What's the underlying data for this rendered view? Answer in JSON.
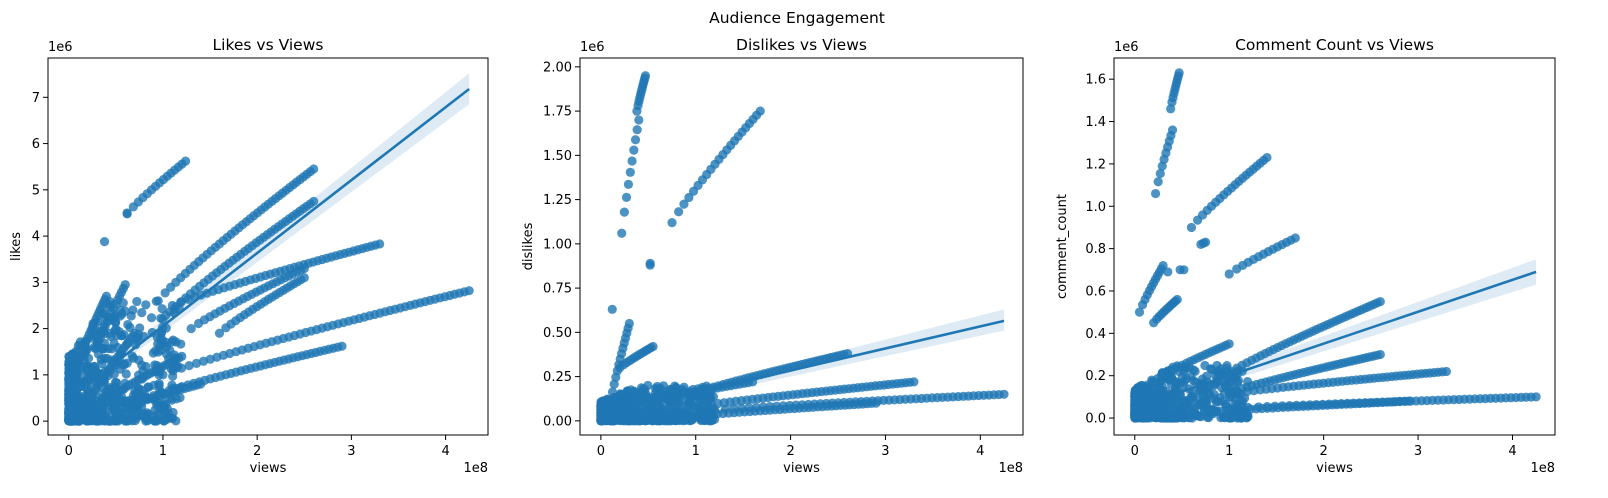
{
  "figure": {
    "suptitle": "Audience Engagement"
  },
  "colors": {
    "series": "#1f77b4",
    "band": "#1f77b4"
  },
  "chart_data": [
    {
      "type": "scatter",
      "title": "Likes vs Views",
      "xlabel": "views",
      "ylabel": "likes",
      "x_offset_label": "1e8",
      "y_offset_label": "1e6",
      "x_scale": 100000000,
      "y_scale": 1000000,
      "xlim": [
        -0.22,
        4.45
      ],
      "ylim": [
        -0.3,
        7.85
      ],
      "xticks": [
        0,
        1,
        2,
        3,
        4
      ],
      "xtick_labels": [
        "0",
        "1",
        "2",
        "3",
        "4"
      ],
      "yticks": [
        0,
        1,
        2,
        3,
        4,
        5,
        6,
        7
      ],
      "ytick_labels": [
        "0",
        "1",
        "2",
        "3",
        "4",
        "5",
        "6",
        "7"
      ],
      "regression": {
        "x": [
          0,
          4.25
        ],
        "y": [
          0.48,
          7.18
        ],
        "ci_lo": [
          0.4,
          6.85
        ],
        "ci_hi": [
          0.56,
          7.52
        ]
      },
      "trails": [
        {
          "x0": 0.62,
          "y0": 4.48,
          "x1": 1.24,
          "y1": 5.62,
          "n": 15
        },
        {
          "x0": 0.95,
          "y0": 2.6,
          "x1": 2.6,
          "y1": 5.45,
          "n": 40
        },
        {
          "x0": 1.0,
          "y0": 2.2,
          "x1": 2.6,
          "y1": 4.75,
          "n": 38
        },
        {
          "x0": 1.1,
          "y0": 2.5,
          "x1": 3.3,
          "y1": 3.83,
          "n": 42
        },
        {
          "x0": 1.0,
          "y0": 1.0,
          "x1": 4.25,
          "y1": 2.82,
          "n": 55
        },
        {
          "x0": 0.9,
          "y0": 0.55,
          "x1": 2.9,
          "y1": 1.62,
          "n": 38
        },
        {
          "x0": 0.3,
          "y0": 1.6,
          "x1": 0.6,
          "y1": 2.95,
          "n": 14
        },
        {
          "x0": 0.6,
          "y0": 0.3,
          "x1": 1.4,
          "y1": 0.8,
          "n": 18
        },
        {
          "x0": 0.2,
          "y0": 0.2,
          "x1": 1.2,
          "y1": 1.4,
          "n": 30
        },
        {
          "x0": 0.1,
          "y0": 0.05,
          "x1": 0.7,
          "y1": 1.9,
          "n": 24
        },
        {
          "x0": 0.05,
          "y0": 1.0,
          "x1": 0.4,
          "y1": 2.7,
          "n": 20
        },
        {
          "x0": 0.05,
          "y0": 0.3,
          "x1": 0.9,
          "y1": 0.5,
          "n": 24
        },
        {
          "x0": 1.3,
          "y0": 2.0,
          "x1": 2.5,
          "y1": 3.3,
          "n": 26
        },
        {
          "x0": 1.6,
          "y0": 1.9,
          "x1": 2.5,
          "y1": 3.1,
          "n": 22
        }
      ],
      "points": [
        {
          "x": 0.38,
          "y": 3.88
        },
        {
          "x": 0.62,
          "y": 4.5
        }
      ],
      "cluster": {
        "x_max": 1.2,
        "y_max": 2.6,
        "n": 650
      }
    },
    {
      "type": "scatter",
      "title": "Dislikes vs Views",
      "xlabel": "views",
      "ylabel": "dislikes",
      "x_offset_label": "1e8",
      "y_offset_label": "1e6",
      "x_scale": 100000000,
      "y_scale": 1000000,
      "xlim": [
        -0.22,
        4.45
      ],
      "ylim": [
        -0.08,
        2.05
      ],
      "xticks": [
        0,
        1,
        2,
        3,
        4
      ],
      "xtick_labels": [
        "0",
        "1",
        "2",
        "3",
        "4"
      ],
      "yticks": [
        0,
        0.25,
        0.5,
        0.75,
        1.0,
        1.25,
        1.5,
        1.75,
        2.0
      ],
      "ytick_labels": [
        "0.00",
        "0.25",
        "0.50",
        "0.75",
        "1.00",
        "1.25",
        "1.50",
        "1.75",
        "2.00"
      ],
      "regression": {
        "x": [
          0,
          4.25
        ],
        "y": [
          0.035,
          0.565
        ],
        "ci_lo": [
          0.02,
          0.51
        ],
        "ci_hi": [
          0.05,
          0.63
        ]
      },
      "trails": [
        {
          "x0": 0.38,
          "y0": 1.75,
          "x1": 0.47,
          "y1": 1.95,
          "n": 12
        },
        {
          "x0": 0.22,
          "y0": 1.06,
          "x1": 0.4,
          "y1": 1.7,
          "n": 10
        },
        {
          "x0": 0.75,
          "y0": 1.12,
          "x1": 1.68,
          "y1": 1.75,
          "n": 22
        },
        {
          "x0": 0.95,
          "y0": 0.15,
          "x1": 2.6,
          "y1": 0.38,
          "n": 40
        },
        {
          "x0": 1.0,
          "y0": 0.08,
          "x1": 3.3,
          "y1": 0.22,
          "n": 45
        },
        {
          "x0": 1.2,
          "y0": 0.06,
          "x1": 4.25,
          "y1": 0.15,
          "n": 50
        },
        {
          "x0": 0.2,
          "y0": 0.3,
          "x1": 0.55,
          "y1": 0.42,
          "n": 14
        },
        {
          "x0": 0.1,
          "y0": 0.1,
          "x1": 0.3,
          "y1": 0.55,
          "n": 14
        },
        {
          "x0": 0.8,
          "y0": 0.02,
          "x1": 2.9,
          "y1": 0.1,
          "n": 40
        },
        {
          "x0": 0.6,
          "y0": 0.12,
          "x1": 1.6,
          "y1": 0.22,
          "n": 20
        }
      ],
      "points": [
        {
          "x": 0.52,
          "y": 0.88
        },
        {
          "x": 0.52,
          "y": 0.89
        },
        {
          "x": 0.12,
          "y": 0.63
        }
      ],
      "cluster": {
        "x_max": 1.2,
        "y_max": 0.2,
        "n": 650
      }
    },
    {
      "type": "scatter",
      "title": "Comment Count vs Views",
      "xlabel": "views",
      "ylabel": "comment_count",
      "x_offset_label": "1e8",
      "y_offset_label": "1e6",
      "x_scale": 100000000,
      "y_scale": 1000000,
      "xlim": [
        -0.22,
        4.45
      ],
      "ylim": [
        -0.08,
        1.7
      ],
      "xticks": [
        0,
        1,
        2,
        3,
        4
      ],
      "xtick_labels": [
        "0",
        "1",
        "2",
        "3",
        "4"
      ],
      "yticks": [
        0,
        0.2,
        0.4,
        0.6,
        0.8,
        1.0,
        1.2,
        1.4,
        1.6
      ],
      "ytick_labels": [
        "0.0",
        "0.2",
        "0.4",
        "0.6",
        "0.8",
        "1.0",
        "1.2",
        "1.4",
        "1.6"
      ],
      "regression": {
        "x": [
          0,
          4.25
        ],
        "y": [
          0.05,
          0.69
        ],
        "ci_lo": [
          0.035,
          0.63
        ],
        "ci_hi": [
          0.065,
          0.75
        ]
      },
      "trails": [
        {
          "x0": 0.38,
          "y0": 1.46,
          "x1": 0.47,
          "y1": 1.63,
          "n": 10
        },
        {
          "x0": 0.22,
          "y0": 1.06,
          "x1": 0.4,
          "y1": 1.36,
          "n": 10
        },
        {
          "x0": 0.6,
          "y0": 0.9,
          "x1": 1.4,
          "y1": 1.23,
          "n": 20
        },
        {
          "x0": 1.0,
          "y0": 0.68,
          "x1": 1.7,
          "y1": 0.85,
          "n": 14
        },
        {
          "x0": 0.7,
          "y0": 0.82,
          "x1": 0.75,
          "y1": 0.83,
          "n": 3
        },
        {
          "x0": 0.2,
          "y0": 0.45,
          "x1": 0.45,
          "y1": 0.56,
          "n": 12
        },
        {
          "x0": 0.05,
          "y0": 0.5,
          "x1": 0.3,
          "y1": 0.72,
          "n": 12
        },
        {
          "x0": 0.95,
          "y0": 0.2,
          "x1": 2.6,
          "y1": 0.55,
          "n": 40
        },
        {
          "x0": 1.0,
          "y0": 0.12,
          "x1": 2.6,
          "y1": 0.3,
          "n": 38
        },
        {
          "x0": 1.1,
          "y0": 0.12,
          "x1": 3.3,
          "y1": 0.22,
          "n": 44
        },
        {
          "x0": 1.2,
          "y0": 0.05,
          "x1": 4.25,
          "y1": 0.1,
          "n": 50
        },
        {
          "x0": 0.8,
          "y0": 0.03,
          "x1": 2.9,
          "y1": 0.08,
          "n": 40
        },
        {
          "x0": 0.3,
          "y0": 0.2,
          "x1": 1.0,
          "y1": 0.35,
          "n": 18
        }
      ],
      "points": [
        {
          "x": 0.48,
          "y": 0.7
        },
        {
          "x": 0.52,
          "y": 0.7
        },
        {
          "x": 0.35,
          "y": 0.69
        }
      ],
      "cluster": {
        "x_max": 1.2,
        "y_max": 0.25,
        "n": 650
      }
    }
  ]
}
